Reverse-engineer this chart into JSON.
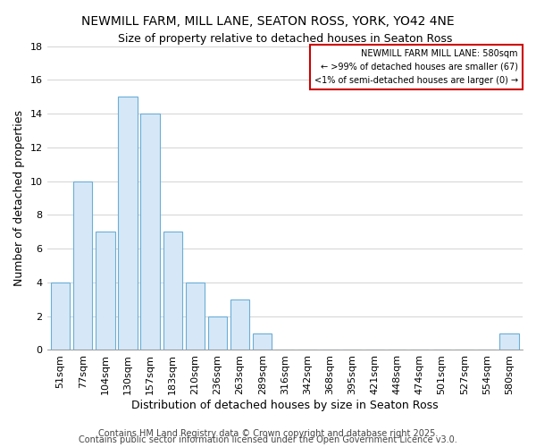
{
  "title": "NEWMILL FARM, MILL LANE, SEATON ROSS, YORK, YO42 4NE",
  "subtitle": "Size of property relative to detached houses in Seaton Ross",
  "xlabel": "Distribution of detached houses by size in Seaton Ross",
  "ylabel": "Number of detached properties",
  "categories": [
    "51sqm",
    "77sqm",
    "104sqm",
    "130sqm",
    "157sqm",
    "183sqm",
    "210sqm",
    "236sqm",
    "263sqm",
    "289sqm",
    "316sqm",
    "342sqm",
    "368sqm",
    "395sqm",
    "421sqm",
    "448sqm",
    "474sqm",
    "501sqm",
    "527sqm",
    "554sqm",
    "580sqm"
  ],
  "values": [
    4,
    10,
    7,
    15,
    14,
    7,
    4,
    2,
    3,
    1,
    0,
    0,
    0,
    0,
    0,
    0,
    0,
    0,
    0,
    0,
    1
  ],
  "bar_facecolor": "#d6e8f7",
  "bar_edgecolor": "#6aaed6",
  "ylim": [
    0,
    18
  ],
  "yticks": [
    0,
    2,
    4,
    6,
    8,
    10,
    12,
    14,
    16,
    18
  ],
  "legend_title": "NEWMILL FARM MILL LANE: 580sqm",
  "legend_line1": "← >99% of detached houses are smaller (67)",
  "legend_line2": "<1% of semi-detached houses are larger (0) →",
  "footer1": "Contains HM Land Registry data © Crown copyright and database right 2025.",
  "footer2": "Contains public sector information licensed under the Open Government Licence v3.0.",
  "grid_color": "#cccccc",
  "background_color": "#ffffff",
  "legend_border_color": "#cc0000",
  "title_fontsize": 10,
  "subtitle_fontsize": 9,
  "axis_label_fontsize": 9,
  "tick_fontsize": 8,
  "footer_fontsize": 7
}
